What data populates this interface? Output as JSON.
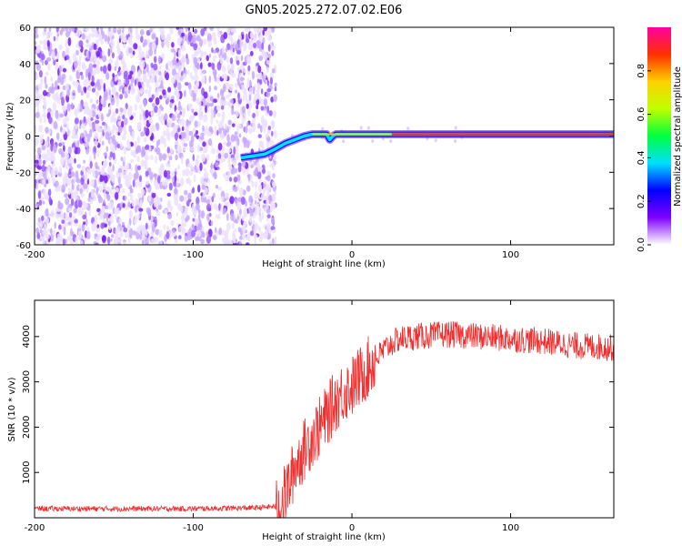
{
  "title": "GN05.2025.272.07.02.E06",
  "colorbar": {
    "label": "Normalized spectral amplitude",
    "ticks": [
      "0.0",
      "0.2",
      "0.4",
      "0.6",
      "0.8"
    ],
    "tick_values": [
      0.0,
      0.2,
      0.4,
      0.6,
      0.8
    ],
    "range": [
      0,
      1
    ],
    "colors": [
      "#ffffff",
      "#8000ff",
      "#0000ff",
      "#00e0ff",
      "#00ff40",
      "#c0ff00",
      "#ffd000",
      "#ff3000",
      "#ff00a0"
    ]
  },
  "chart_data": [
    {
      "type": "heatmap",
      "title": "GN05.2025.272.07.02.E06",
      "xlabel": "Height of straight line (km)",
      "ylabel": "Frequency (Hz)",
      "xlim": [
        -200,
        165
      ],
      "ylim": [
        -60,
        60
      ],
      "xticks": [
        -200,
        -100,
        0,
        100
      ],
      "yticks": [
        -60,
        -40,
        -20,
        0,
        20,
        40,
        60
      ],
      "xtick_labels": [
        "-200",
        "-100",
        "0",
        "100"
      ],
      "ytick_labels": [
        "-60",
        "-40",
        "-20",
        "0",
        "20",
        "40",
        "60"
      ],
      "noise_region_x": [
        -200,
        -48
      ],
      "signal_trace": {
        "x": [
          -70,
          -62,
          -55,
          -48,
          -42,
          -36,
          -30,
          -25,
          -20,
          -16,
          -14,
          -12,
          -10,
          -5,
          0,
          20,
          60,
          100,
          165
        ],
        "frequency": [
          -12,
          -11,
          -10,
          -7,
          -4,
          -2,
          0,
          1,
          1,
          1,
          -2,
          0,
          1,
          1,
          1,
          1,
          1,
          1,
          1
        ],
        "peak_amplitude_x": [
          25,
          165
        ],
        "peak_amplitude": 1.0
      }
    },
    {
      "type": "line",
      "xlabel": "Height of straight line (km)",
      "ylabel": "SNR (10 * v/v)",
      "xlim": [
        -200,
        165
      ],
      "ylim": [
        0,
        4800
      ],
      "xticks": [
        -200,
        -100,
        0,
        100
      ],
      "yticks": [
        1000,
        2000,
        3000,
        4000
      ],
      "xtick_labels": [
        "-200",
        "-100",
        "0",
        "100"
      ],
      "ytick_labels": [
        "1000",
        "2000",
        "3000",
        "4000"
      ],
      "color": "#f03030",
      "series": [
        {
          "name": "SNR",
          "x": [
            -200,
            -150,
            -100,
            -60,
            -45,
            -40,
            -35,
            -30,
            -25,
            -20,
            -15,
            -10,
            -5,
            0,
            5,
            10,
            15,
            20,
            25,
            30,
            40,
            60,
            80,
            100,
            120,
            140,
            165
          ],
          "values": [
            200,
            200,
            200,
            220,
            260,
            700,
            1200,
            1500,
            1800,
            2000,
            2300,
            2600,
            2800,
            2900,
            3100,
            3300,
            3500,
            3700,
            3850,
            3950,
            4000,
            4050,
            4000,
            3950,
            3900,
            3800,
            3750
          ]
        }
      ]
    }
  ]
}
